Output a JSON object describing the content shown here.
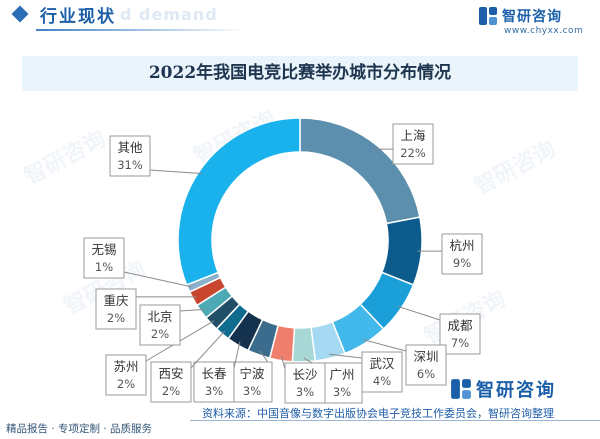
{
  "header": {
    "section_title": "行业现状",
    "section_ghost": "d demand",
    "brand_name": "智研咨询",
    "brand_url": "www.chyxx.com",
    "brand_color": "#1b5fa8",
    "logo_icon": "zhiyan-logo-icon"
  },
  "chart_data": {
    "type": "pie",
    "title": "2022年我国电竞比赛举办城市分布情况",
    "donut": true,
    "slices": [
      {
        "label": "上海",
        "value": 22,
        "pct": "22%",
        "color": "#5b8fad"
      },
      {
        "label": "杭州",
        "value": 9,
        "pct": "9%",
        "color": "#0b5c8c"
      },
      {
        "label": "成都",
        "value": 7,
        "pct": "7%",
        "color": "#1a9fd9"
      },
      {
        "label": "深圳",
        "value": 6,
        "pct": "6%",
        "color": "#43b8ea"
      },
      {
        "label": "武汉",
        "value": 4,
        "pct": "4%",
        "color": "#a5d8f1"
      },
      {
        "label": "广州",
        "value": 3,
        "pct": "3%",
        "color": "#a7d8d5"
      },
      {
        "label": "长沙",
        "value": 3,
        "pct": "3%",
        "color": "#ef7f6c"
      },
      {
        "label": "宁波",
        "value": 3,
        "pct": "3%",
        "color": "#3b6c8d"
      },
      {
        "label": "长春",
        "value": 3,
        "pct": "3%",
        "color": "#14324d"
      },
      {
        "label": "西安",
        "value": 2,
        "pct": "2%",
        "color": "#0f6c8f"
      },
      {
        "label": "苏州",
        "value": 2,
        "pct": "2%",
        "color": "#214f68"
      },
      {
        "label": "北京",
        "value": 2,
        "pct": "2%",
        "color": "#4da9b4"
      },
      {
        "label": "重庆",
        "value": 2,
        "pct": "2%",
        "color": "#c8452e"
      },
      {
        "label": "无锡",
        "value": 1,
        "pct": "1%",
        "color": "#8ab0cb"
      },
      {
        "label": "其他",
        "value": 31,
        "pct": "31%",
        "color": "#1ab2ec"
      }
    ]
  },
  "footer": {
    "left_text": "精品报告 · 专项定制 · 品质服务",
    "source": "资料来源：中国音像与数字出版协会电子竞技工作委员会，智研咨询整理",
    "brand_name": "智研咨询"
  },
  "watermark_text": "智研咨询"
}
